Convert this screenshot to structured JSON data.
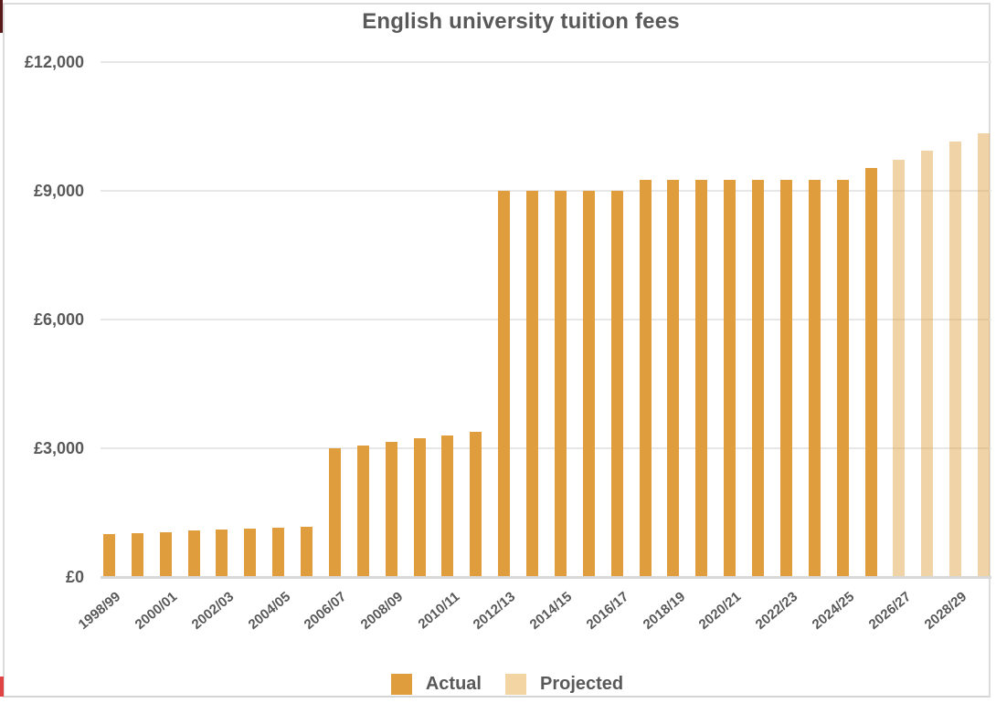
{
  "chart_data": {
    "type": "bar",
    "title": "English university tuition fees",
    "currency": "GBP",
    "ylim": [
      0,
      12000
    ],
    "grid": true,
    "legend_position": "bottom",
    "y_ticks": [
      {
        "value": 0,
        "label": "£0"
      },
      {
        "value": 3000,
        "label": "£3,000"
      },
      {
        "value": 6000,
        "label": "£6,000"
      },
      {
        "value": 9000,
        "label": "£9,000"
      },
      {
        "value": 12000,
        "label": "£12,000"
      }
    ],
    "x_ticks": [
      "1998/99",
      "2000/01",
      "2002/03",
      "2004/05",
      "2006/07",
      "2008/09",
      "2010/11",
      "2012/13",
      "2014/15",
      "2016/17",
      "2018/19",
      "2020/21",
      "2022/23",
      "2024/25",
      "2026/27",
      "2028/29"
    ],
    "bars": [
      {
        "year": "1998/99",
        "value": 1000,
        "status": "actual"
      },
      {
        "year": "1999/00",
        "value": 1025,
        "status": "actual"
      },
      {
        "year": "2000/01",
        "value": 1050,
        "status": "actual"
      },
      {
        "year": "2001/02",
        "value": 1075,
        "status": "actual"
      },
      {
        "year": "2002/03",
        "value": 1100,
        "status": "actual"
      },
      {
        "year": "2003/04",
        "value": 1125,
        "status": "actual"
      },
      {
        "year": "2004/05",
        "value": 1150,
        "status": "actual"
      },
      {
        "year": "2005/06",
        "value": 1175,
        "status": "actual"
      },
      {
        "year": "2006/07",
        "value": 3000,
        "status": "actual"
      },
      {
        "year": "2007/08",
        "value": 3070,
        "status": "actual"
      },
      {
        "year": "2008/09",
        "value": 3145,
        "status": "actual"
      },
      {
        "year": "2009/10",
        "value": 3225,
        "status": "actual"
      },
      {
        "year": "2010/11",
        "value": 3290,
        "status": "actual"
      },
      {
        "year": "2011/12",
        "value": 3375,
        "status": "actual"
      },
      {
        "year": "2012/13",
        "value": 9000,
        "status": "actual"
      },
      {
        "year": "2013/14",
        "value": 9000,
        "status": "actual"
      },
      {
        "year": "2014/15",
        "value": 9000,
        "status": "actual"
      },
      {
        "year": "2015/16",
        "value": 9000,
        "status": "actual"
      },
      {
        "year": "2016/17",
        "value": 9000,
        "status": "actual"
      },
      {
        "year": "2017/18",
        "value": 9250,
        "status": "actual"
      },
      {
        "year": "2018/19",
        "value": 9250,
        "status": "actual"
      },
      {
        "year": "2019/20",
        "value": 9250,
        "status": "actual"
      },
      {
        "year": "2020/21",
        "value": 9250,
        "status": "actual"
      },
      {
        "year": "2021/22",
        "value": 9250,
        "status": "actual"
      },
      {
        "year": "2022/23",
        "value": 9250,
        "status": "actual"
      },
      {
        "year": "2023/24",
        "value": 9250,
        "status": "actual"
      },
      {
        "year": "2024/25",
        "value": 9250,
        "status": "actual"
      },
      {
        "year": "2025/26",
        "value": 9535,
        "status": "actual"
      },
      {
        "year": "2026/27",
        "value": 9730,
        "status": "projected"
      },
      {
        "year": "2027/28",
        "value": 9935,
        "status": "projected"
      },
      {
        "year": "2028/29",
        "value": 10140,
        "status": "projected"
      },
      {
        "year": "2029/30",
        "value": 10350,
        "status": "projected"
      }
    ],
    "legend": [
      {
        "label": "Actual",
        "color": "#df9d3e"
      },
      {
        "label": "Projected",
        "color": "#f2d5a3"
      }
    ],
    "colors": {
      "actual": "#df9d3e",
      "projected_fill": "rgba(223,157,62,0.45)",
      "projected_solid": "#f2d5a3",
      "text": "#595959",
      "gridline": "#e7e7e7",
      "baseline": "#d8d8d8"
    }
  },
  "decorations": {
    "edge_mark_top_color": "#5a1a1a",
    "edge_mark_bottom_color": "#e04343",
    "frame_border_color": "#dcdcdc"
  }
}
